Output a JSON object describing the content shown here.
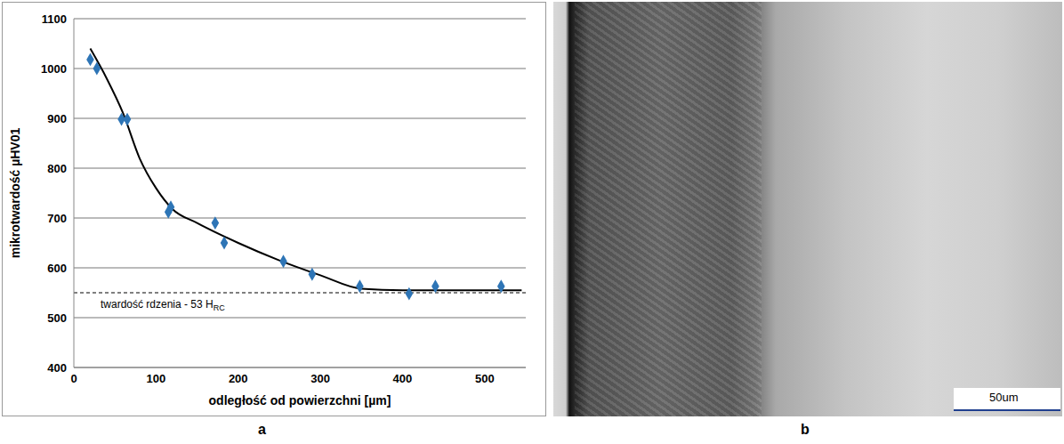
{
  "chart_data": {
    "type": "scatter",
    "panel_label": "a",
    "x_label": "odległość od powierzchni [µm]",
    "y_label": "mikrotwardość µHV01",
    "xlim": [
      0,
      550
    ],
    "xticks": [
      0,
      100,
      200,
      300,
      400,
      500
    ],
    "ylim": [
      400,
      1100
    ],
    "yticks": [
      400,
      500,
      600,
      700,
      800,
      900,
      1000,
      1100
    ],
    "grid": true,
    "series": [
      {
        "type": "scatter",
        "marker": "diamond",
        "color": "#2e75b6",
        "x": [
          20,
          28,
          58,
          65,
          115,
          118,
          172,
          183,
          255,
          290,
          348,
          408,
          440,
          520
        ],
        "values": [
          1018,
          1000,
          898,
          898,
          712,
          722,
          690,
          650,
          613,
          587,
          563,
          548,
          563,
          563
        ]
      },
      {
        "type": "line",
        "line_style": "solid",
        "color": "#000000",
        "x": [
          20,
          40,
          60,
          80,
          100,
          120,
          150,
          200,
          250,
          300,
          350,
          400,
          450,
          545
        ],
        "values": [
          1040,
          980,
          910,
          820,
          760,
          718,
          690,
          650,
          615,
          585,
          558,
          555,
          555,
          555
        ]
      }
    ],
    "reference_line": {
      "value": 550,
      "line_style": "dashed",
      "label": "twardość rdzenia - 53 H",
      "label_subscript": "RC"
    }
  },
  "image": {
    "panel_label": "b",
    "scale_bar_label": "50um"
  }
}
